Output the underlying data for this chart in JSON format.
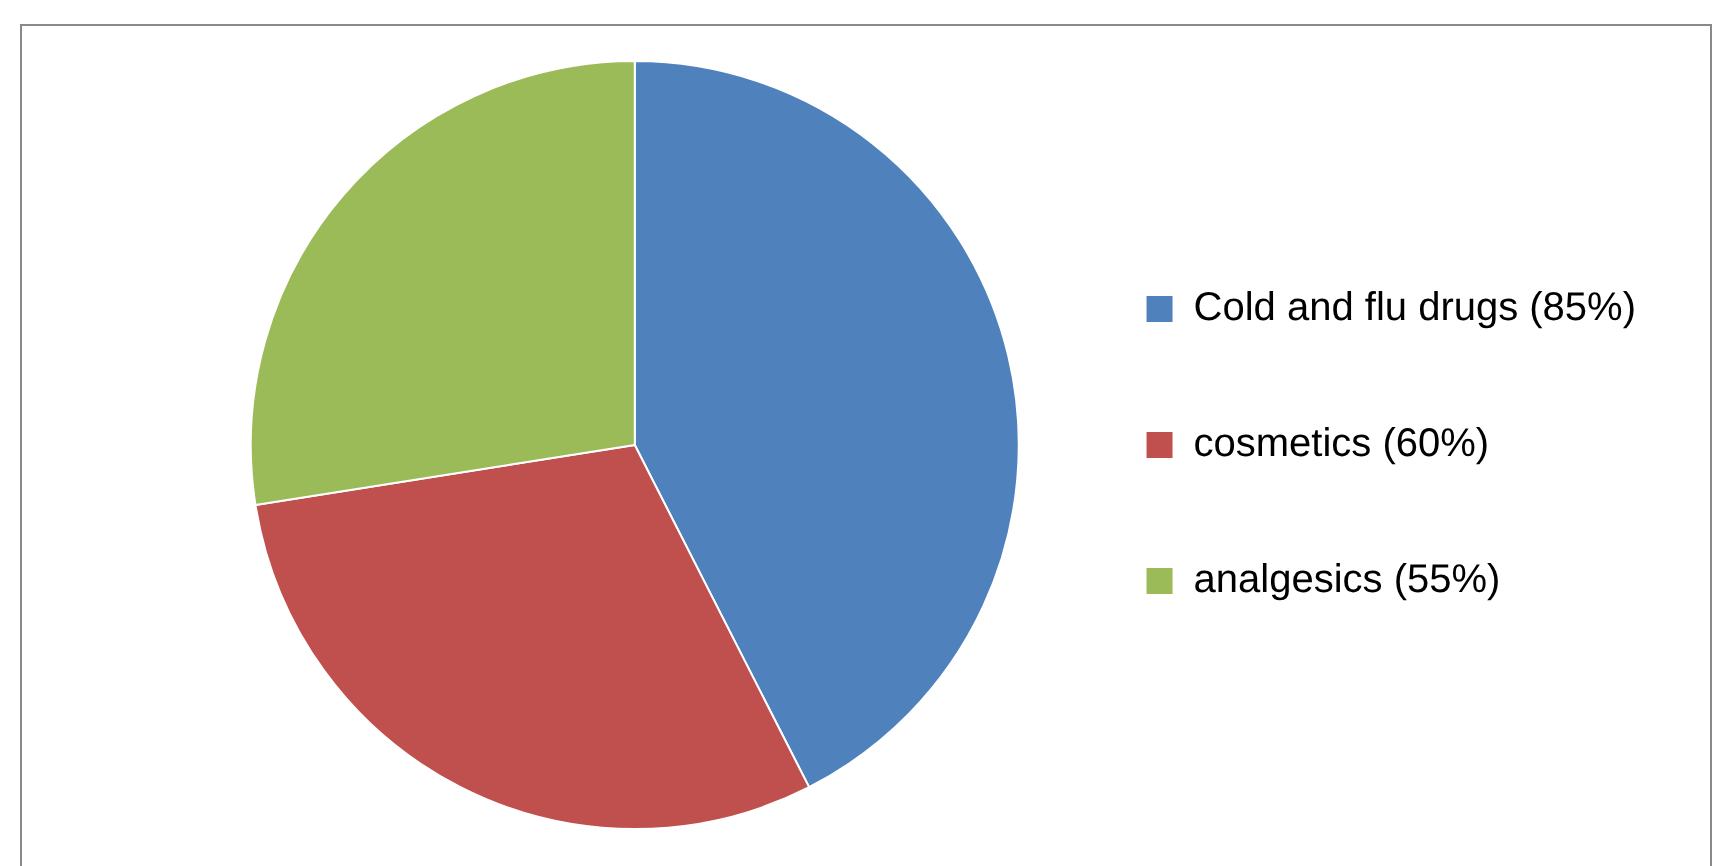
{
  "chart_data": {
    "type": "pie",
    "categories": [
      "Cold and flu drugs (85%)",
      "cosmetics (60%)",
      "analgesics (55%)"
    ],
    "values": [
      85,
      60,
      55
    ],
    "colors": [
      "#4f81bd",
      "#c0504d",
      "#9bbb59"
    ],
    "legend": "right"
  }
}
